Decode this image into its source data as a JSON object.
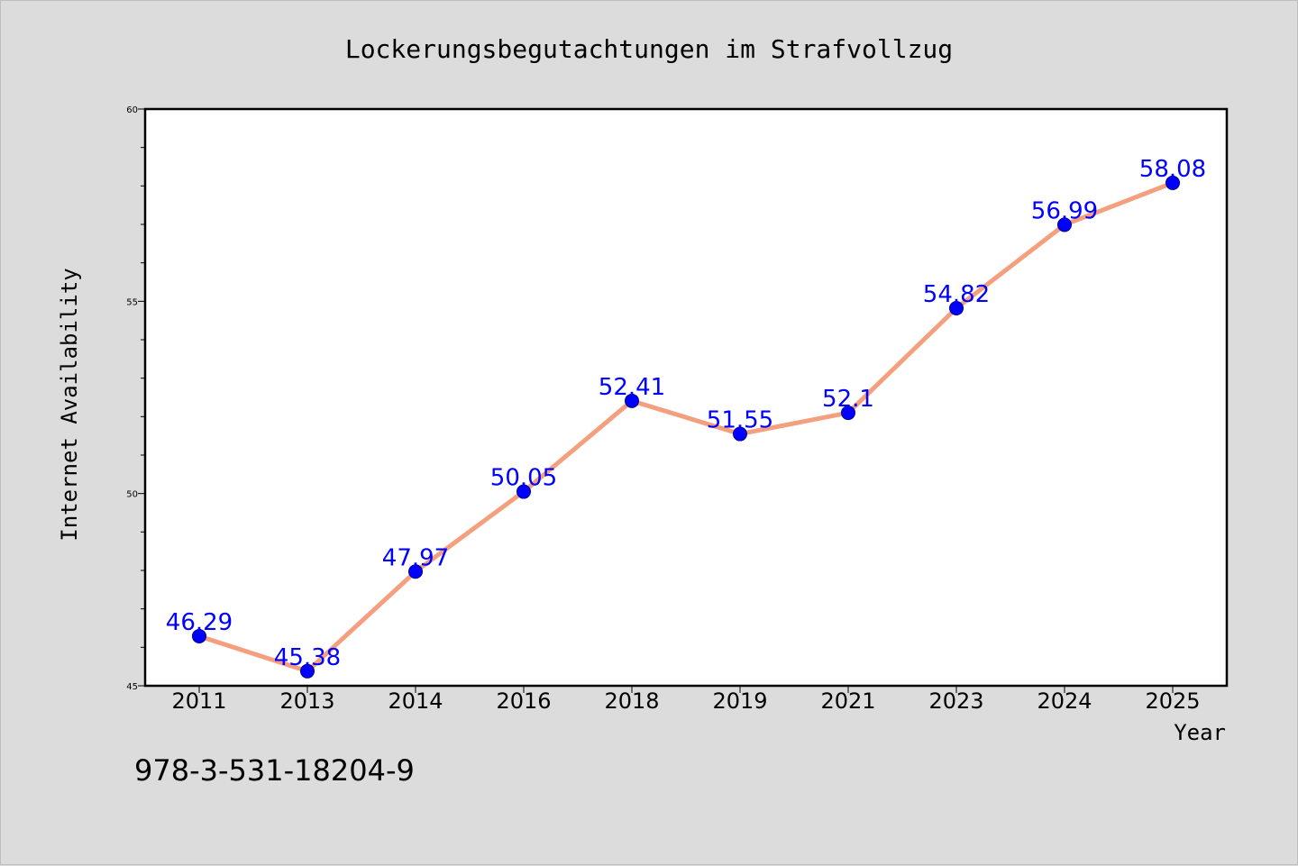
{
  "chart_data": {
    "type": "line",
    "title": "Lockerungsbegutachtungen im Strafvollzug",
    "xlabel": "Year",
    "ylabel": "Internet Availability",
    "categories": [
      "2011",
      "2013",
      "2014",
      "2016",
      "2018",
      "2019",
      "2021",
      "2023",
      "2024",
      "2025"
    ],
    "series": [
      {
        "values": [
          46.29,
          45.38,
          47.97,
          50.05,
          52.41,
          51.55,
          52.1,
          54.82,
          56.99,
          58.08
        ],
        "data_labels": [
          "46.29",
          "45.38",
          "47.97",
          "50.05",
          "52.41",
          "51.55",
          "52.1",
          "54.82",
          "56.99",
          "58.08"
        ]
      }
    ],
    "ylim": [
      45,
      60
    ],
    "yticks": [
      45,
      50,
      55,
      60
    ],
    "ytick_labels": [
      "45",
      "50",
      "55",
      "60"
    ],
    "grid": false,
    "colors": {
      "line": "#f4a07e",
      "marker": "#0000ff",
      "marker_edge": "#00008b",
      "label": "#0000ff",
      "plot_bg": "#ffffff",
      "figure_bg": "#dcdcdc"
    }
  },
  "footer": {
    "isbn": "978-3-531-18204-9"
  }
}
